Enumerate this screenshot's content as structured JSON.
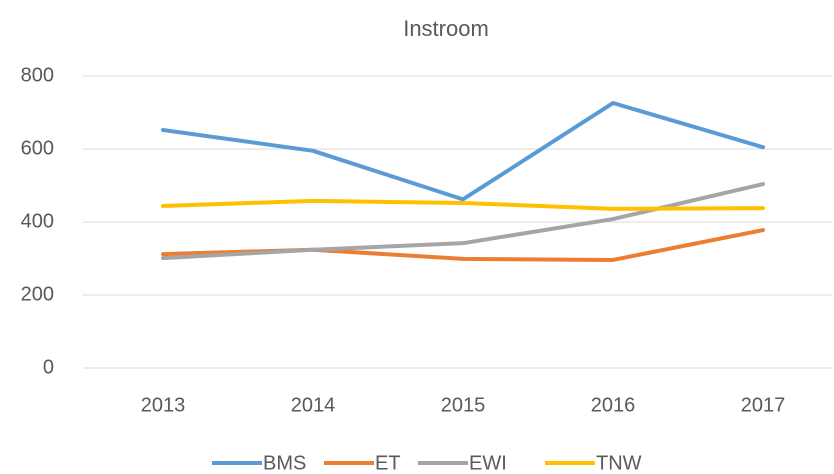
{
  "chart_data": {
    "type": "line",
    "title": "Instroom",
    "categories": [
      "2013",
      "2014",
      "2015",
      "2016",
      "2017"
    ],
    "series": [
      {
        "name": "BMS",
        "color": "#5b9bd5",
        "values": [
          652,
          595,
          462,
          726,
          605
        ]
      },
      {
        "name": "ET",
        "color": "#ed7d31",
        "values": [
          312,
          324,
          299,
          296,
          378
        ]
      },
      {
        "name": "EWI",
        "color": "#a5a5a5",
        "values": [
          301,
          324,
          342,
          408,
          504
        ]
      },
      {
        "name": "TNW",
        "color": "#ffc000",
        "values": [
          444,
          458,
          452,
          436,
          438
        ]
      }
    ],
    "ylim": [
      0,
      800
    ],
    "yticks": [
      0,
      200,
      400,
      600,
      800
    ],
    "grid": true,
    "legend": "bottom"
  }
}
